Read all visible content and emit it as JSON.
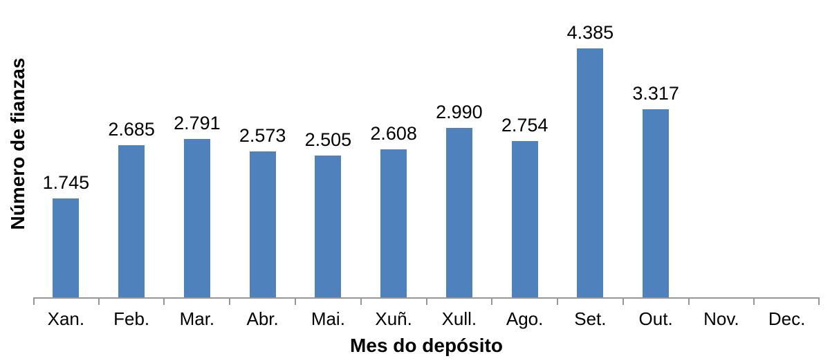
{
  "chart_data": {
    "type": "bar",
    "categories": [
      "Xan.",
      "Feb.",
      "Mar.",
      "Abr.",
      "Mai.",
      "Xuñ.",
      "Xull.",
      "Ago.",
      "Set.",
      "Out.",
      "Nov.",
      "Dec."
    ],
    "values": [
      1745,
      2685,
      2791,
      2573,
      2505,
      2608,
      2990,
      2754,
      4385,
      3317,
      null,
      null
    ],
    "value_labels": [
      "1.745",
      "2.685",
      "2.791",
      "2.573",
      "2.505",
      "2.608",
      "2.990",
      "2.754",
      "4.385",
      "3.317",
      "",
      ""
    ],
    "title": "",
    "xlabel": "Mes do depósito",
    "ylabel": "Número de fianzas",
    "ylim": [
      0,
      5000
    ],
    "grid": false,
    "legend_position": "none",
    "bar_color": "#4F81BD",
    "axis_color": "#969696",
    "label_color": "#000000",
    "background_color": "#FFFFFF"
  }
}
